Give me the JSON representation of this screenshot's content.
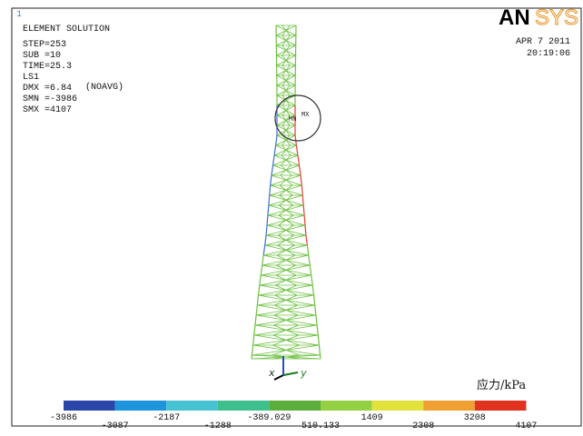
{
  "window_id": "1",
  "info": {
    "title": "ELEMENT SOLUTION",
    "lines": [
      "STEP=253",
      "SUB =10",
      "TIME=25.3",
      "LS1",
      "DMX =6.84",
      "SMN =-3986",
      "SMX =4107"
    ],
    "avg": "(NOAVG)"
  },
  "logo": {
    "bold": "AN",
    "outline": "SYS"
  },
  "date": "APR  7 2011",
  "time": "20:19:06",
  "markers": {
    "min": "MN",
    "max": "MX"
  },
  "triad": {
    "x": "x",
    "y": "y"
  },
  "legend": {
    "title": "应力/kPa",
    "labels": [
      -3986,
      -3087,
      -2187,
      -1288,
      -389.029,
      510.133,
      1409,
      2308,
      3208,
      4107
    ],
    "colors": [
      "#2a46a8",
      "#1e94dc",
      "#46c2d2",
      "#3ec08c",
      "#5cae3c",
      "#94d044",
      "#e2e23c",
      "#f0a032",
      "#e0321e"
    ]
  }
}
